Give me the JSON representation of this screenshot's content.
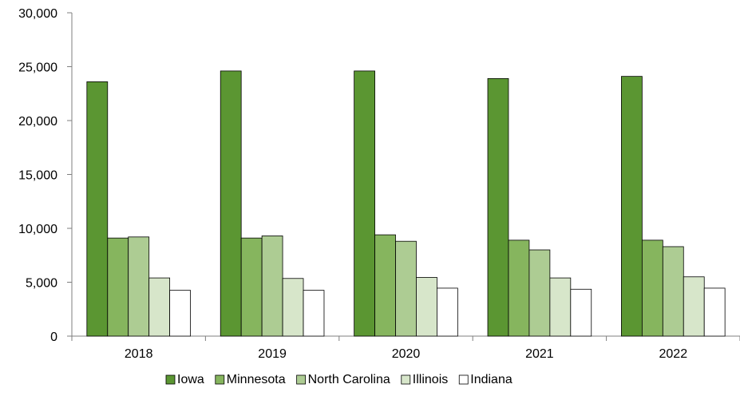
{
  "chart_data": {
    "type": "bar",
    "title": "",
    "xlabel": "",
    "ylabel": "",
    "categories": [
      "2018",
      "2019",
      "2020",
      "2021",
      "2022"
    ],
    "ylim": [
      0,
      30000
    ],
    "yticks": [
      0,
      5000,
      10000,
      15000,
      20000,
      25000,
      30000
    ],
    "ytick_labels": [
      "0",
      "5,000",
      "10,000",
      "15,000",
      "20,000",
      "25,000",
      "30,000"
    ],
    "grid": false,
    "legend_position": "bottom",
    "series": [
      {
        "name": "Iowa",
        "color": "#5b9632",
        "values": [
          23600,
          24600,
          24600,
          23900,
          24100
        ]
      },
      {
        "name": "Minnesota",
        "color": "#86b55e",
        "values": [
          9100,
          9100,
          9400,
          8900,
          8900
        ]
      },
      {
        "name": "North Carolina",
        "color": "#adcc93",
        "values": [
          9200,
          9300,
          8800,
          8000,
          8300
        ]
      },
      {
        "name": "Illinois",
        "color": "#d7e6ca",
        "values": [
          5400,
          5350,
          5450,
          5400,
          5500
        ]
      },
      {
        "name": "Indiana",
        "color": "#ffffff",
        "values": [
          4250,
          4250,
          4450,
          4350,
          4450
        ]
      }
    ]
  }
}
